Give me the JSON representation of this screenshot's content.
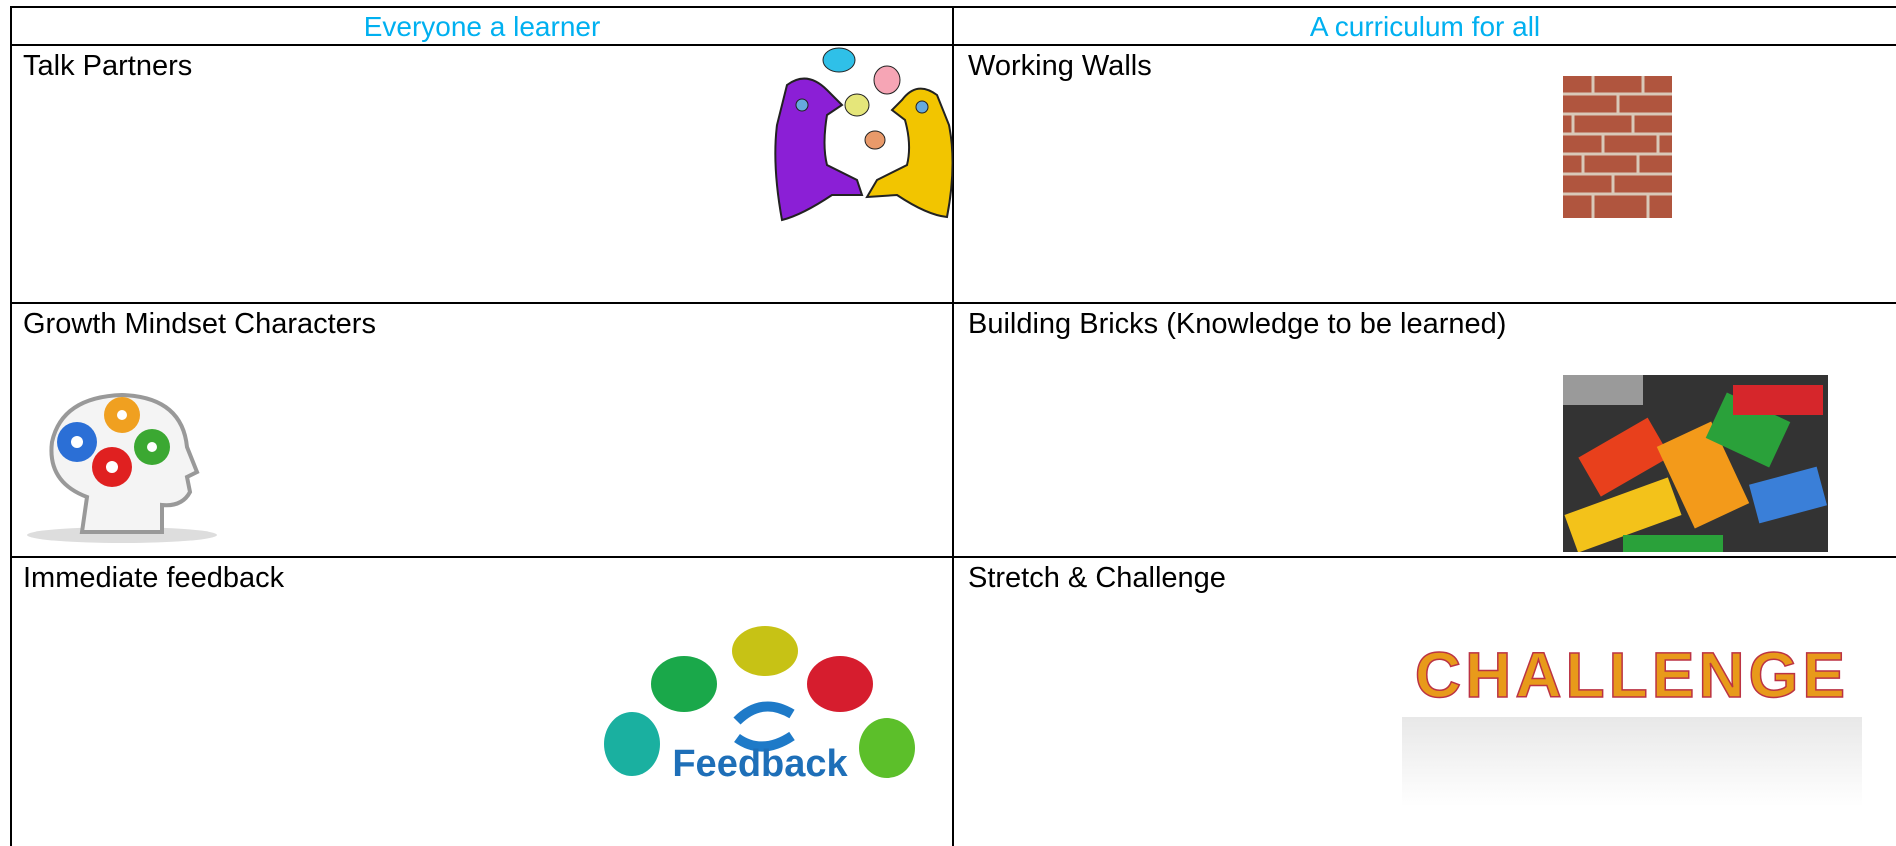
{
  "table": {
    "header": [
      "Everyone a learner",
      "A curriculum for all"
    ],
    "rows": [
      [
        {
          "text": "Talk Partners"
        },
        {
          "text": "Working Walls"
        }
      ],
      [
        {
          "text": "Growth Mindset Characters"
        },
        {
          "text": "Building Bricks (Knowledge to be learned)"
        }
      ],
      [
        {
          "text": "Immediate feedback",
          "image_text": "Feedback"
        },
        {
          "text": "Stretch & Challenge",
          "image_text": "CHALLENGE"
        }
      ]
    ]
  }
}
